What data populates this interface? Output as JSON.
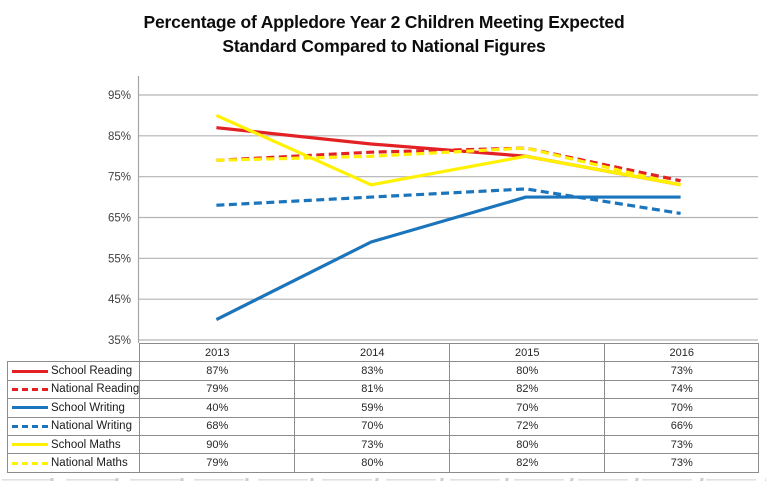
{
  "title": {
    "line1": "Percentage of Appledore Year 2 Children Meeting Expected",
    "line2": "Standard Compared to National Figures"
  },
  "chart_data": {
    "type": "line",
    "categories": [
      "2013",
      "2014",
      "2015",
      "2016"
    ],
    "series": [
      {
        "name": "School Reading",
        "values": [
          87,
          83,
          80,
          73
        ],
        "color": "#e32124",
        "style": "solid"
      },
      {
        "name": "National Reading",
        "values": [
          79,
          81,
          82,
          74
        ],
        "color": "#e32124",
        "style": "dashed"
      },
      {
        "name": "School Writing",
        "values": [
          40,
          59,
          70,
          70
        ],
        "color": "#1b75bc",
        "style": "solid"
      },
      {
        "name": "National Writing",
        "values": [
          68,
          70,
          72,
          66
        ],
        "color": "#1b75bc",
        "style": "dashed"
      },
      {
        "name": "School Maths",
        "values": [
          90,
          73,
          80,
          73
        ],
        "color": "#fff100",
        "style": "solid"
      },
      {
        "name": "National Maths",
        "values": [
          79,
          80,
          82,
          73
        ],
        "color": "#fff100",
        "style": "dashed"
      }
    ],
    "title": "Percentage of Appledore Year 2 Children Meeting Expected Standard Compared to National Figures",
    "xlabel": "",
    "ylabel": "",
    "ylim": [
      35,
      95
    ],
    "yticks": [
      35,
      45,
      55,
      65,
      75,
      85,
      95
    ],
    "ytick_labels": [
      "35%",
      "45%",
      "55%",
      "65%",
      "75%",
      "85%",
      "95%"
    ],
    "value_suffix": "%",
    "grid": true,
    "legend_position": "table-left",
    "colors": {
      "gridline": "#b3b3b3",
      "axis": "#a6a6a6",
      "table_border": "#8c8c8c",
      "tick_text": "#404040"
    }
  }
}
